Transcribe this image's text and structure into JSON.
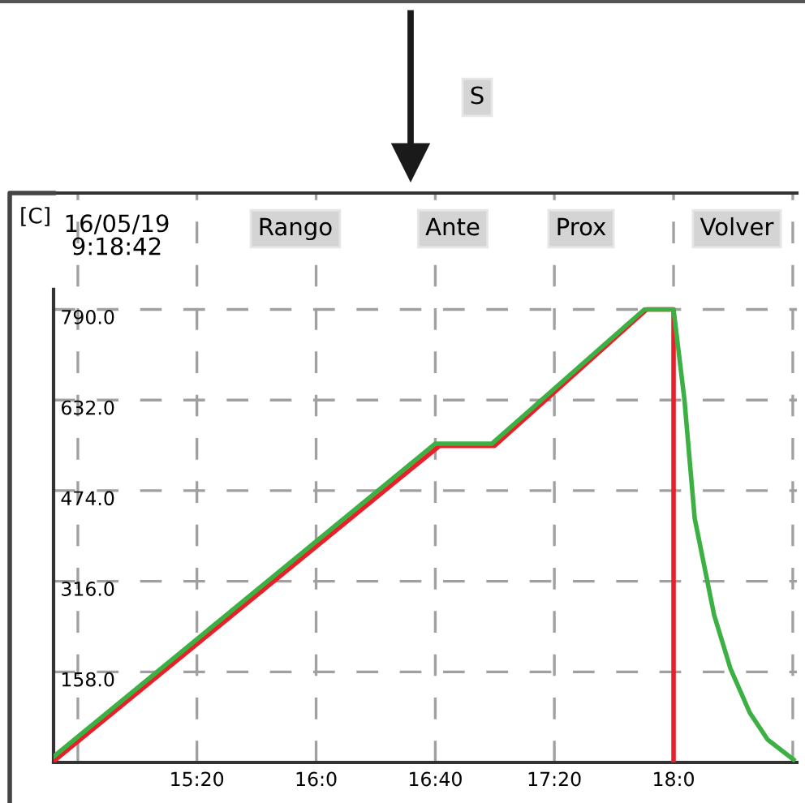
{
  "chart_data": {
    "type": "line",
    "annotations": [
      "S",
      "[C]",
      "16/05/19\n9:18:42",
      "Rango",
      "Ante",
      "Prox",
      "Volver"
    ],
    "series": [
      {
        "color": "#e8202a",
        "x": [
          14.531,
          16.69,
          16.998,
          17.85,
          18.0,
          18.0
        ],
        "values": [
          2,
          552,
          552,
          790,
          790,
          0
        ]
      },
      {
        "color": "#3cb043",
        "x": [
          14.531,
          16.667,
          16.984,
          17.837,
          18.0,
          18.061,
          18.118,
          18.227,
          18.318,
          18.426,
          18.526,
          18.671
        ],
        "values": [
          10,
          556,
          556,
          790,
          790,
          632,
          426,
          257,
          164,
          87,
          40,
          5
        ]
      }
    ],
    "xlim": [
      14.531,
      18.69
    ],
    "xticks": [
      {
        "value": 14.667,
        "label": null
      },
      {
        "value": 15.333,
        "label": "15:20"
      },
      {
        "value": 16.0,
        "label": "16:0"
      },
      {
        "value": 16.667,
        "label": "16:40"
      },
      {
        "value": 17.333,
        "label": "17:20"
      },
      {
        "value": 18.0,
        "label": "18:0"
      },
      {
        "value": 18.667,
        "label": null
      }
    ],
    "ylim": [
      0,
      993
    ],
    "yticks": [
      {
        "value": 158,
        "label": "158.0"
      },
      {
        "value": 316,
        "label": "316.0"
      },
      {
        "value": 474,
        "label": "474.0"
      },
      {
        "value": 632,
        "label": "632.0"
      },
      {
        "value": 790,
        "label": "790.0"
      }
    ],
    "grid": true,
    "line_style": "solid",
    "marker": "none",
    "legend": false
  }
}
